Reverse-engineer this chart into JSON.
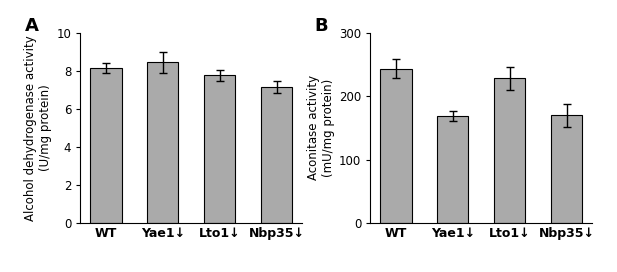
{
  "panel_A": {
    "label": "A",
    "categories": [
      "WT",
      "Yae1↓",
      "Lto1↓",
      "Nbp35↓"
    ],
    "values": [
      8.15,
      8.45,
      7.75,
      7.15
    ],
    "errors": [
      0.25,
      0.55,
      0.28,
      0.32
    ],
    "ylabel_line1": "Alcohol dehydrogenase activity",
    "ylabel_line2": "(U/mg protein)",
    "ylim": [
      0,
      10
    ],
    "yticks": [
      0,
      2,
      4,
      6,
      8,
      10
    ]
  },
  "panel_B": {
    "label": "B",
    "categories": [
      "WT",
      "Yae1↓",
      "Lto1↓",
      "Nbp35↓"
    ],
    "values": [
      243,
      168,
      228,
      170
    ],
    "errors": [
      15,
      8,
      18,
      18
    ],
    "ylabel_line1": "Aconitase activity",
    "ylabel_line2": "(mU/mg protein)",
    "ylim": [
      0,
      300
    ],
    "yticks": [
      0,
      100,
      200,
      300
    ]
  },
  "bar_color": "#AAAAAA",
  "bar_edgecolor": "#000000",
  "bar_width": 0.55,
  "capsize": 3,
  "error_linewidth": 1.0,
  "tick_fontsize": 8.5,
  "ylabel_fontsize": 8.5,
  "xtick_fontsize": 9,
  "panel_label_fontsize": 13
}
